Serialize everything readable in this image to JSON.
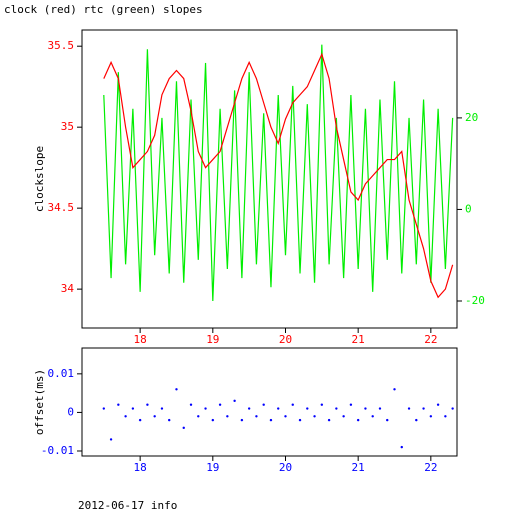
{
  "chart_data": [
    {
      "type": "line",
      "title": "clock (red) rtc (green) slopes",
      "ylabel": "clockslope",
      "x": [
        17.5,
        17.6,
        17.7,
        17.8,
        17.9,
        18.0,
        18.1,
        18.2,
        18.3,
        18.4,
        18.5,
        18.6,
        18.7,
        18.8,
        18.9,
        19.0,
        19.1,
        19.2,
        19.3,
        19.4,
        19.5,
        19.6,
        19.7,
        19.8,
        19.9,
        20.0,
        20.1,
        20.2,
        20.3,
        20.4,
        20.5,
        20.6,
        20.7,
        20.8,
        20.9,
        21.0,
        21.1,
        21.2,
        21.3,
        21.4,
        21.5,
        21.6,
        21.7,
        21.8,
        21.9,
        22.0,
        22.1,
        22.2,
        22.3
      ],
      "xlim": [
        17.2,
        22.36
      ],
      "xticks": [
        18,
        19,
        20,
        21,
        22
      ],
      "xtick_color": "#ff0000",
      "ylim": [
        33.76,
        35.6
      ],
      "yticks": [
        34,
        34.5,
        35,
        35.5
      ],
      "ytick_color": "#ff0000",
      "y2lim": [
        -25.9,
        39.2
      ],
      "y2ticks": [
        -20,
        0,
        20
      ],
      "y2tick_color": "#00ee00",
      "series": [
        {
          "name": "rtc",
          "color": "#00ee00",
          "axis": "y2",
          "values": [
            25,
            -15,
            30,
            -12,
            22,
            -18,
            35,
            -10,
            20,
            -14,
            28,
            -16,
            24,
            -11,
            32,
            -20,
            22,
            -13,
            26,
            -15,
            30,
            -12,
            21,
            -17,
            25,
            -10,
            27,
            -14,
            23,
            -16,
            36,
            -12,
            20,
            -15,
            25,
            -13,
            22,
            -18,
            24,
            -11,
            28,
            -14,
            20,
            -12,
            24,
            -16,
            22,
            -13,
            20
          ]
        },
        {
          "name": "clock",
          "color": "#ff0000",
          "values": [
            35.3,
            35.4,
            35.3,
            35.0,
            34.75,
            34.8,
            34.85,
            34.95,
            35.2,
            35.3,
            35.35,
            35.3,
            35.1,
            34.85,
            34.75,
            34.8,
            34.85,
            35.0,
            35.15,
            35.3,
            35.4,
            35.3,
            35.15,
            35.0,
            34.9,
            35.05,
            35.15,
            35.2,
            35.25,
            35.35,
            35.45,
            35.3,
            35.0,
            34.8,
            34.6,
            34.55,
            34.65,
            34.7,
            34.75,
            34.8,
            34.8,
            34.85,
            34.55,
            34.4,
            34.25,
            34.05,
            33.95,
            34.0,
            34.15
          ]
        }
      ]
    },
    {
      "type": "scatter",
      "ylabel": "offset(ms)",
      "x": [
        17.5,
        17.6,
        17.7,
        17.8,
        17.9,
        18.0,
        18.1,
        18.2,
        18.3,
        18.4,
        18.5,
        18.6,
        18.7,
        18.8,
        18.9,
        19.0,
        19.1,
        19.2,
        19.3,
        19.4,
        19.5,
        19.6,
        19.7,
        19.8,
        19.9,
        20.0,
        20.1,
        20.2,
        20.3,
        20.4,
        20.5,
        20.6,
        20.7,
        20.8,
        20.9,
        21.0,
        21.1,
        21.2,
        21.3,
        21.4,
        21.5,
        21.6,
        21.7,
        21.8,
        21.9,
        22.0,
        22.1,
        22.2,
        22.3
      ],
      "xlim": [
        17.2,
        22.36
      ],
      "xticks": [
        18,
        19,
        20,
        21,
        22
      ],
      "xtick_color": "#0000ff",
      "ylim": [
        -0.0113,
        0.0167
      ],
      "yticks": [
        -0.01,
        0,
        0.01
      ],
      "ytick_color": "#0000ff",
      "series": [
        {
          "name": "offset",
          "color": "#0000ff",
          "values": [
            0.001,
            -0.007,
            0.002,
            -0.001,
            0.001,
            -0.002,
            0.002,
            -0.001,
            0.001,
            -0.002,
            0.006,
            -0.004,
            0.002,
            -0.001,
            0.001,
            -0.002,
            0.002,
            -0.001,
            0.003,
            -0.002,
            0.001,
            -0.001,
            0.002,
            -0.002,
            0.001,
            -0.001,
            0.002,
            -0.002,
            0.001,
            -0.001,
            0.002,
            -0.002,
            0.001,
            -0.001,
            0.002,
            -0.002,
            0.001,
            -0.001,
            0.001,
            -0.002,
            0.006,
            -0.009,
            0.001,
            -0.002,
            0.001,
            -0.001,
            0.002,
            -0.001,
            0.001
          ]
        }
      ]
    }
  ],
  "footer": "2012-06-17 info"
}
